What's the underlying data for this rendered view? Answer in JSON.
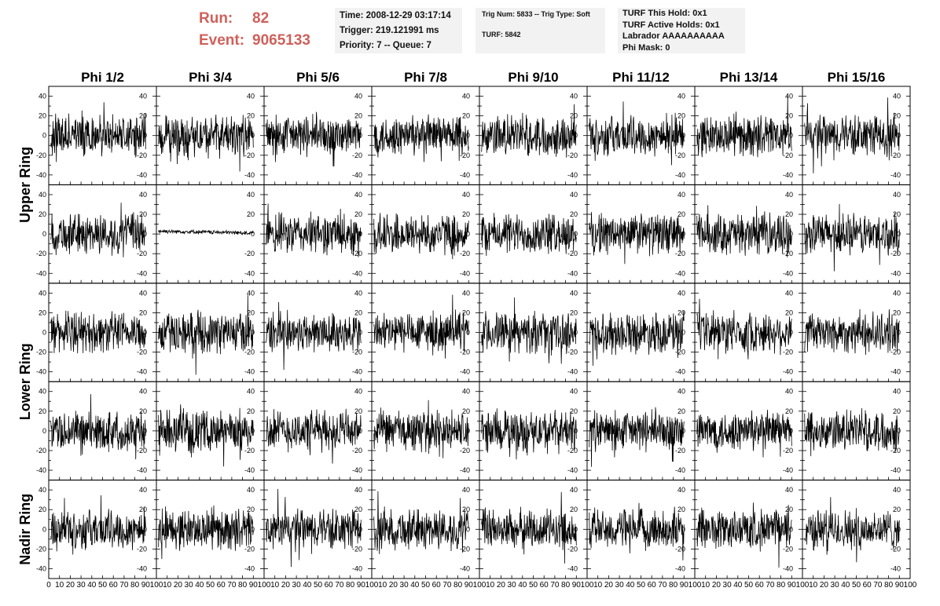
{
  "run_info": {
    "run_label": "Run:",
    "run_value": "82",
    "event_label": "Event:",
    "event_value": "9065133"
  },
  "header_info": {
    "time": "Time: 2008-12-29 03:17:14",
    "trigger": "Trigger: 219.121991 ms",
    "priority": "Priority: 7 -- Queue: 7"
  },
  "trig_info": {
    "trig_num": "Trig Num: 5833 -- Trig Type: Soft",
    "turf": "TURF: 5842"
  },
  "turf_info": {
    "this_hold": "TURF This Hold: 0x1",
    "active_holds": "TURF Active Holds: 0x1",
    "labrador": "Labrador AAAAAAAAAA",
    "phi_mask": "Phi Mask: 0"
  },
  "chart_data": {
    "type": "line",
    "columns": [
      "Phi 1/2",
      "Phi 3/4",
      "Phi 5/6",
      "Phi 7/8",
      "Phi 9/10",
      "Phi 11/12",
      "Phi 13/14",
      "Phi 15/16"
    ],
    "rows": [
      "Upper Ring",
      "Lower Ring",
      "Nadir Ring"
    ],
    "panel_rows": 5,
    "xlim": [
      0,
      100
    ],
    "ylim": [
      -50,
      50
    ],
    "x_ticks": [
      "0",
      "10",
      "20",
      "30",
      "40",
      "50",
      "60",
      "70",
      "80",
      "90",
      "100"
    ],
    "y_ticks": [
      "-40",
      "-20",
      "0",
      "20",
      "40"
    ],
    "samples_per_trace": 260,
    "typical_amplitude": 20,
    "quiet_panel_amplitude": 2,
    "quiet_panel": [
      1,
      1
    ]
  }
}
